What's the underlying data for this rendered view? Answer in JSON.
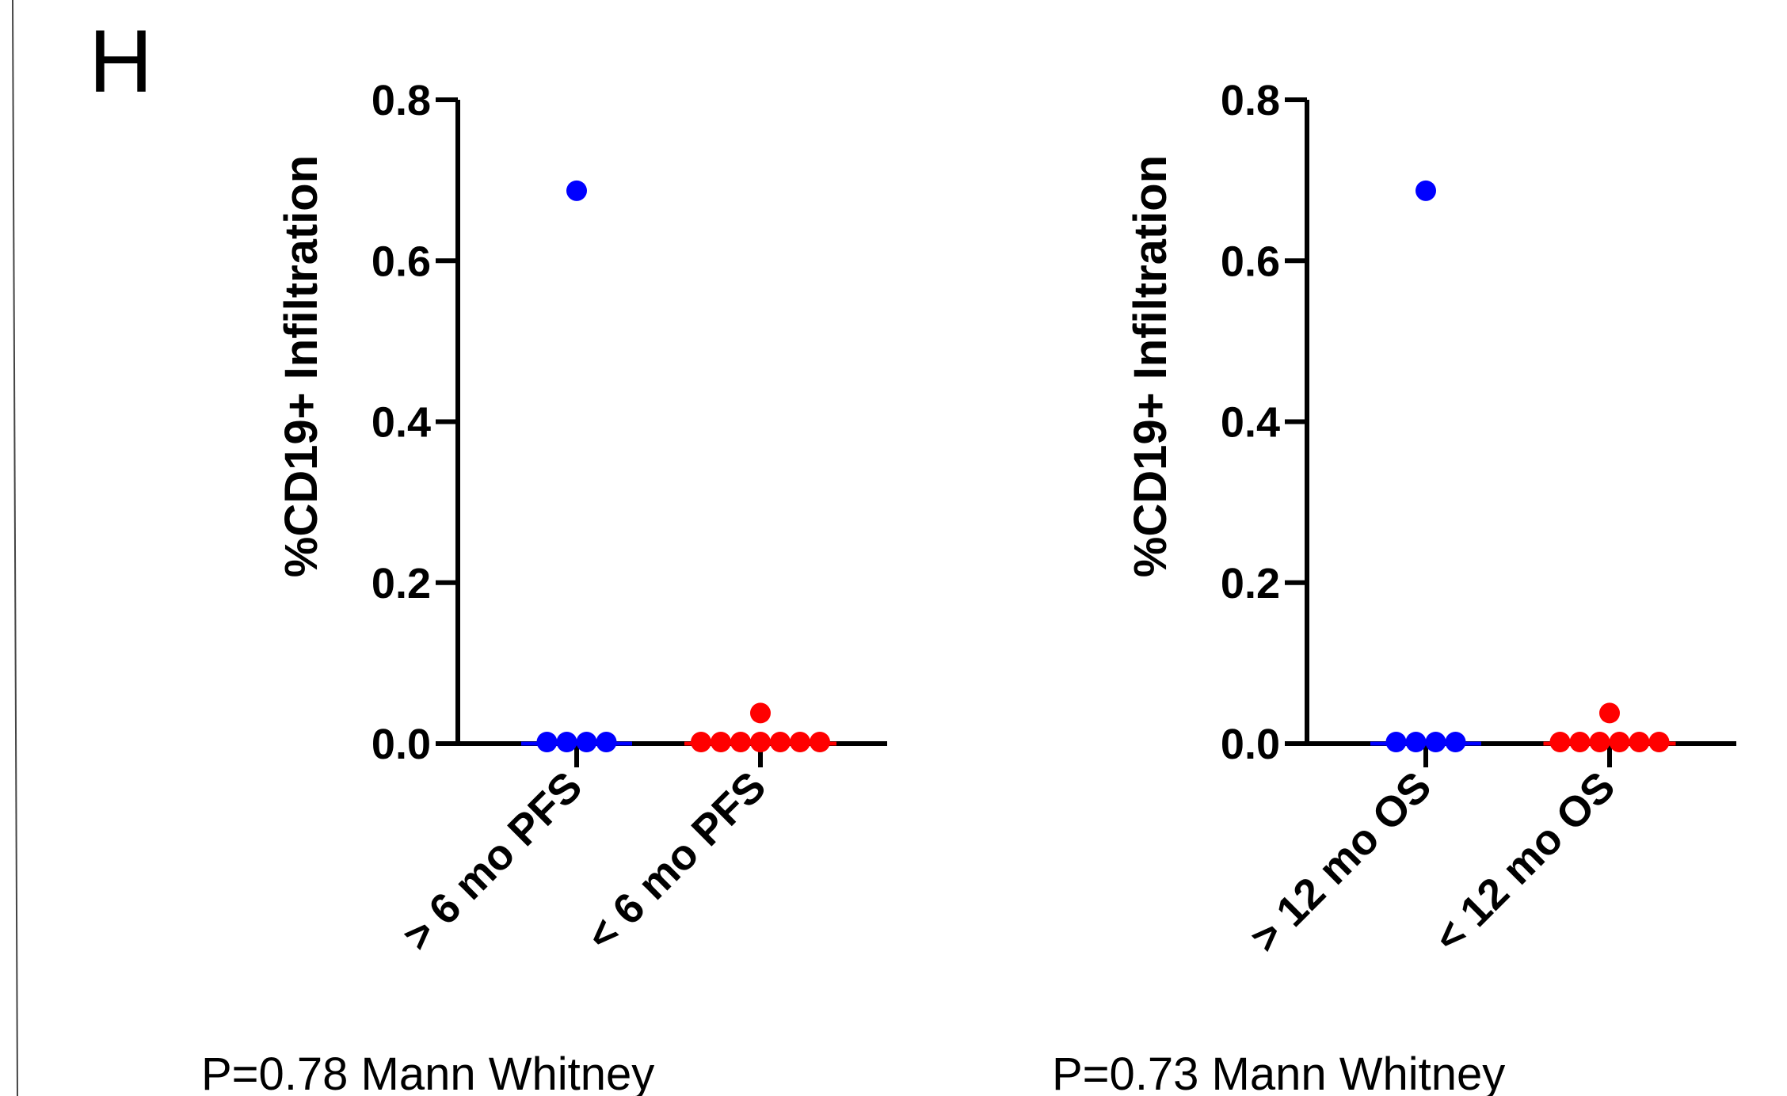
{
  "panel_label": "H",
  "colors": {
    "group_high": "#0000ff",
    "group_low": "#ff0000",
    "axis": "#000000"
  },
  "chart_data": [
    {
      "type": "scatter",
      "subtype": "dot-plot",
      "ylabel": "%CD19+ Infiltration",
      "ylim": [
        0,
        0.8
      ],
      "yticks": [
        "0.0",
        "0.2",
        "0.4",
        "0.6",
        "0.8"
      ],
      "ytick_values": [
        0,
        0.2,
        0.4,
        0.6,
        0.8
      ],
      "categories": [
        "> 6 mo PFS",
        "< 6 mo PFS"
      ],
      "series": [
        {
          "category": "> 6 mo PFS",
          "color": "#0000ff",
          "median": 0,
          "values": [
            0.687,
            0,
            0,
            0,
            0
          ]
        },
        {
          "category": "< 6 mo PFS",
          "color": "#ff0000",
          "median": 0,
          "values": [
            0.038,
            0,
            0,
            0,
            0,
            0,
            0,
            0
          ]
        }
      ],
      "stat_note": "P=0.78 Mann Whitney"
    },
    {
      "type": "scatter",
      "subtype": "dot-plot",
      "ylabel": "%CD19+ Infiltration",
      "ylim": [
        0,
        0.8
      ],
      "yticks": [
        "0.0",
        "0.2",
        "0.4",
        "0.6",
        "0.8"
      ],
      "ytick_values": [
        0,
        0.2,
        0.4,
        0.6,
        0.8
      ],
      "categories": [
        "> 12 mo OS",
        "< 12 mo OS"
      ],
      "series": [
        {
          "category": "> 12 mo OS",
          "color": "#0000ff",
          "median": 0,
          "values": [
            0.687,
            0,
            0,
            0,
            0
          ]
        },
        {
          "category": "< 12 mo OS",
          "color": "#ff0000",
          "median": 0,
          "values": [
            0.038,
            0,
            0,
            0,
            0,
            0,
            0
          ]
        }
      ],
      "stat_note": "P=0.73 Mann Whitney"
    }
  ]
}
